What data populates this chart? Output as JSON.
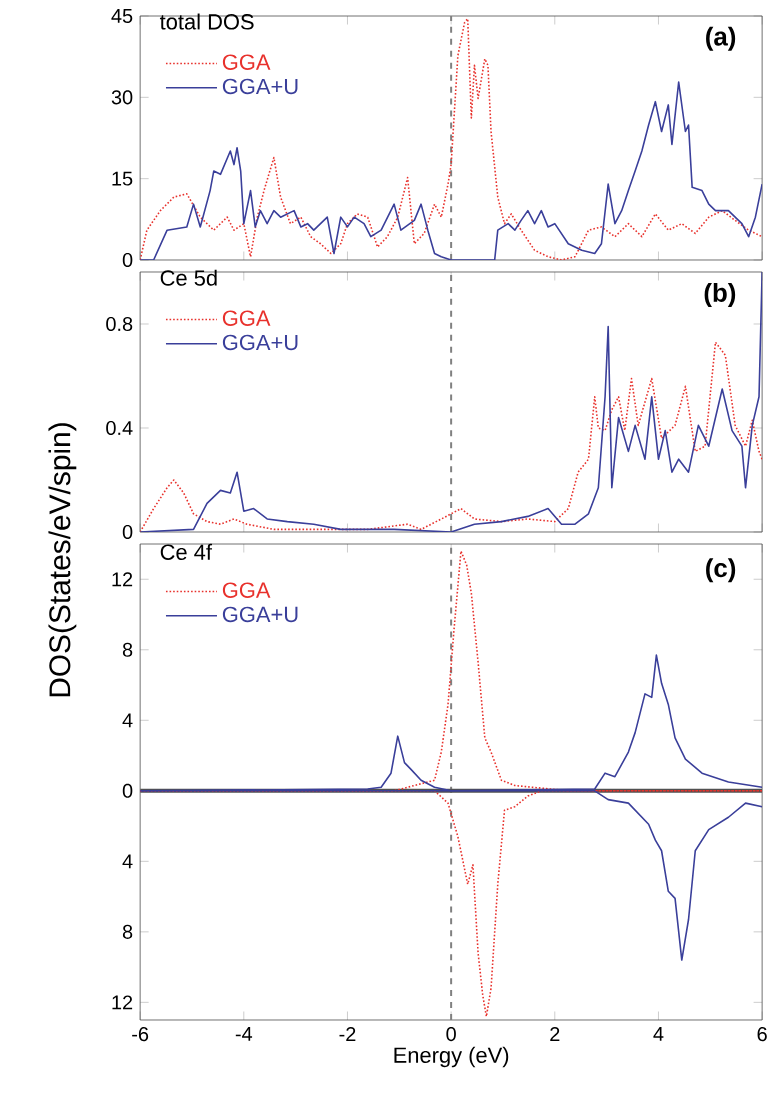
{
  "chart_data": [
    {
      "type": "line",
      "title": "total DOS",
      "annotations": [
        "(a)"
      ],
      "xlim": [
        -6,
        6
      ],
      "xticks": [
        -6,
        -4,
        -2,
        0,
        2,
        4,
        6
      ],
      "ylim": [
        0,
        45
      ],
      "yticks": [
        0,
        15,
        30,
        45
      ],
      "tick_labels": "y",
      "legend": "top left",
      "ref_lines": [
        {
          "axis": "x",
          "value": 0,
          "color": "#808080",
          "line_style": "dashed"
        }
      ],
      "series": [
        {
          "name": "GGA",
          "color": "#e8312c",
          "line_style": "dotted",
          "x": [
            -6,
            -5.87,
            -5.61,
            -5.35,
            -5.1,
            -4.84,
            -4.58,
            -4.32,
            -4.19,
            -4.0,
            -3.87,
            -3.74,
            -3.61,
            -3.42,
            -3.29,
            -3.1,
            -2.9,
            -2.71,
            -2.52,
            -2.32,
            -2.13,
            -2.0,
            -1.81,
            -1.61,
            -1.42,
            -1.23,
            -1.03,
            -0.84,
            -0.71,
            -0.52,
            -0.32,
            -0.19,
            -0.06,
            0.0,
            0.13,
            0.26,
            0.32,
            0.39,
            0.45,
            0.52,
            0.65,
            0.71,
            0.77,
            0.9,
            1.03,
            1.16,
            1.35,
            1.61,
            1.87,
            2.13,
            2.39,
            2.65,
            2.9,
            3.16,
            3.42,
            3.68,
            3.94,
            4.19,
            4.45,
            4.71,
            4.97,
            5.23,
            5.48,
            5.74,
            6.0
          ],
          "values": [
            0,
            5.5,
            9.1,
            11.6,
            12.2,
            7.9,
            5.5,
            7.9,
            5.5,
            6.7,
            0.6,
            7.9,
            12.8,
            18.9,
            11.6,
            6.7,
            7.9,
            4.3,
            3.0,
            1.2,
            3.0,
            6.7,
            8.5,
            7.9,
            2.4,
            4.3,
            7.9,
            15.2,
            3.0,
            4.9,
            10.3,
            7.9,
            14.0,
            17.6,
            37.7,
            43.8,
            44.5,
            26.2,
            35.9,
            29.8,
            37.1,
            35.9,
            23.7,
            11.6,
            6.7,
            8.5,
            5.5,
            1.8,
            0.6,
            0,
            0.6,
            5.5,
            6.1,
            4.3,
            6.7,
            4.3,
            8.5,
            5.5,
            6.7,
            4.9,
            7.9,
            9.1,
            7.3,
            5.5,
            4.3
          ]
        },
        {
          "name": "GGA+U",
          "color": "#3a3f9a",
          "line_style": "solid",
          "x": [
            -6,
            -5.74,
            -5.48,
            -5.1,
            -4.97,
            -4.84,
            -4.65,
            -4.58,
            -4.45,
            -4.26,
            -4.19,
            -4.13,
            -4.06,
            -4.0,
            -3.87,
            -3.78,
            -3.68,
            -3.55,
            -3.42,
            -3.29,
            -3.03,
            -2.9,
            -2.77,
            -2.65,
            -2.39,
            -2.26,
            -2.13,
            -2.0,
            -1.87,
            -1.68,
            -1.55,
            -1.35,
            -1.1,
            -0.97,
            -0.71,
            -0.58,
            -0.45,
            -0.32,
            -0.19,
            0.0,
            0.84,
            0.9,
            1.1,
            1.23,
            1.35,
            1.48,
            1.61,
            1.74,
            1.87,
            2.0,
            2.26,
            2.52,
            2.77,
            2.9,
            3.03,
            3.16,
            3.29,
            3.42,
            3.55,
            3.68,
            3.81,
            3.94,
            4.06,
            4.19,
            4.26,
            4.39,
            4.52,
            4.58,
            4.65,
            4.84,
            4.97,
            5.1,
            5.35,
            5.61,
            5.74,
            5.87,
            6.0
          ],
          "values": [
            0,
            0,
            5.5,
            6.1,
            10.3,
            6.1,
            12.8,
            16.4,
            15.8,
            20.1,
            17.6,
            20.7,
            16.4,
            6.7,
            12.8,
            6.1,
            9.1,
            6.7,
            9.1,
            7.9,
            9.1,
            6.1,
            6.7,
            5.5,
            7.9,
            1.2,
            7.9,
            6.1,
            7.9,
            6.7,
            4.3,
            5.5,
            10.3,
            5.5,
            7.3,
            10.3,
            5.5,
            1.2,
            0.6,
            0,
            0,
            5.5,
            6.7,
            5.5,
            7.3,
            9.1,
            6.7,
            9.1,
            6.1,
            6.7,
            3.0,
            1.8,
            1.2,
            3.0,
            14.0,
            6.7,
            9.1,
            12.8,
            16.4,
            20.1,
            24.9,
            29.2,
            23.7,
            28.6,
            21.3,
            32.8,
            23.7,
            24.9,
            13.4,
            12.8,
            10.3,
            9.1,
            9.1,
            6.7,
            4.3,
            7.9,
            14.0
          ]
        }
      ]
    },
    {
      "type": "line",
      "title": "Ce 5d",
      "ylabel": "DOS(States/eV/spin)",
      "annotations": [
        "(b)"
      ],
      "xlim": [
        -6,
        6
      ],
      "xticks": [
        -6,
        -4,
        -2,
        0,
        2,
        4,
        6
      ],
      "ylim": [
        0,
        1
      ],
      "yticks": [
        0,
        0.4,
        0.8
      ],
      "tick_labels": "y",
      "legend": "top left",
      "ref_lines": [
        {
          "axis": "x",
          "value": 0,
          "color": "#808080",
          "line_style": "dashed"
        }
      ],
      "series": [
        {
          "name": "GGA",
          "color": "#e8312c",
          "line_style": "dotted",
          "x": [
            -6,
            -5.74,
            -5.48,
            -5.35,
            -5.16,
            -4.97,
            -4.71,
            -4.45,
            -4.19,
            -3.94,
            -3.42,
            -2.52,
            -1.61,
            -0.84,
            -0.58,
            -0.19,
            0.19,
            0.45,
            0.97,
            1.48,
            2.0,
            2.26,
            2.45,
            2.65,
            2.77,
            2.84,
            2.97,
            3.1,
            3.23,
            3.35,
            3.48,
            3.61,
            3.87,
            4.06,
            4.32,
            4.52,
            4.71,
            4.9,
            5.1,
            5.29,
            5.48,
            5.68,
            5.81,
            5.94,
            6.0
          ],
          "values": [
            0,
            0.09,
            0.17,
            0.2,
            0.15,
            0.07,
            0.04,
            0.03,
            0.05,
            0.03,
            0.01,
            0.01,
            0.01,
            0.03,
            0.01,
            0.05,
            0.09,
            0.05,
            0.04,
            0.05,
            0.04,
            0.09,
            0.23,
            0.28,
            0.52,
            0.4,
            0.39,
            0.47,
            0.52,
            0.39,
            0.59,
            0.41,
            0.59,
            0.36,
            0.41,
            0.56,
            0.31,
            0.33,
            0.73,
            0.68,
            0.41,
            0.33,
            0.43,
            0.31,
            0.28
          ]
        },
        {
          "name": "GGA+U",
          "color": "#3a3f9a",
          "line_style": "solid",
          "x": [
            -6,
            -4.97,
            -4.71,
            -4.45,
            -4.26,
            -4.13,
            -4.0,
            -3.81,
            -3.55,
            -3.16,
            -2.65,
            -2.13,
            -1.1,
            0.0,
            0.45,
            0.97,
            1.48,
            1.87,
            2.13,
            2.39,
            2.65,
            2.84,
            2.97,
            3.03,
            3.1,
            3.23,
            3.42,
            3.55,
            3.74,
            3.87,
            4.0,
            4.13,
            4.26,
            4.39,
            4.58,
            4.77,
            4.97,
            5.23,
            5.42,
            5.61,
            5.68,
            5.81,
            5.94,
            6.0
          ],
          "values": [
            0,
            0.01,
            0.11,
            0.16,
            0.15,
            0.23,
            0.08,
            0.09,
            0.05,
            0.04,
            0.03,
            0.01,
            0.01,
            0,
            0.03,
            0.04,
            0.06,
            0.09,
            0.03,
            0.03,
            0.07,
            0.17,
            0.52,
            0.79,
            0.17,
            0.44,
            0.31,
            0.41,
            0.28,
            0.52,
            0.28,
            0.39,
            0.23,
            0.28,
            0.23,
            0.41,
            0.33,
            0.55,
            0.39,
            0.33,
            0.17,
            0.41,
            0.52,
            1.0
          ]
        }
      ]
    },
    {
      "type": "line",
      "title": "Ce 4f",
      "xlabel": "Energy (eV)",
      "annotations": [
        "(c)"
      ],
      "xlim": [
        -6,
        6
      ],
      "xticks": [
        -6,
        -4,
        -2,
        0,
        2,
        4,
        6
      ],
      "ylim": [
        -13,
        14
      ],
      "yticks": [
        {
          "value": -12,
          "label": "12"
        },
        {
          "value": -8,
          "label": "8"
        },
        {
          "value": -4,
          "label": "4"
        },
        0,
        4,
        8,
        12
      ],
      "legend": "top left",
      "ref_lines": [
        {
          "axis": "x",
          "value": 0,
          "color": "#808080",
          "line_style": "dashed"
        },
        {
          "axis": "y",
          "value": 0,
          "color": "#505050",
          "line_style": "solid"
        }
      ],
      "series": [
        {
          "name": "GGA",
          "color": "#e8312c",
          "line_style": "dotted",
          "x": [
            -6,
            -1.1,
            -0.71,
            -0.32,
            -0.19,
            -0.06,
            0.06,
            0.19,
            0.3,
            0.39,
            0.52,
            0.65,
            0.77,
            0.97,
            1.23,
            2.26,
            6
          ],
          "values": [
            0,
            0,
            0.3,
            0.6,
            2.2,
            4.9,
            9.3,
            13.6,
            12.8,
            11.2,
            7.3,
            3.0,
            2.2,
            0.6,
            0.3,
            0,
            0
          ]
        },
        {
          "name": "GGA+U",
          "color": "#3a3f9a",
          "line_style": "solid",
          "x": [
            -6,
            -1.61,
            -1.35,
            -1.16,
            -1.03,
            -0.9,
            -0.77,
            -0.58,
            -0.32,
            0,
            2.77,
            2.97,
            3.16,
            3.42,
            3.55,
            3.74,
            3.87,
            3.96,
            4.06,
            4.19,
            4.32,
            4.52,
            4.84,
            5.35,
            6.0
          ],
          "values": [
            0,
            0.1,
            0.2,
            1.0,
            3.1,
            1.6,
            1.2,
            0.6,
            0.2,
            0,
            0.1,
            1.0,
            0.8,
            2.2,
            3.3,
            5.5,
            5.3,
            7.7,
            6.1,
            4.9,
            3.0,
            1.8,
            1.0,
            0.5,
            0.2
          ]
        },
        {
          "color": "#e8312c",
          "line_style": "dotted",
          "x": [
            -6,
            -0.32,
            -0.06,
            0.13,
            0.32,
            0.42,
            0.52,
            0.61,
            0.68,
            0.77,
            0.9,
            1.03,
            1.23,
            1.48,
            1.74,
            6
          ],
          "values": [
            0,
            0,
            -0.7,
            -2.6,
            -5.3,
            -4.2,
            -9.2,
            -11.6,
            -12.8,
            -11.2,
            -5.3,
            -1.1,
            -0.9,
            -0.3,
            0,
            0
          ]
        },
        {
          "color": "#3a3f9a",
          "line_style": "solid",
          "x": [
            -6,
            2.77,
            3.03,
            3.42,
            3.81,
            3.94,
            4.06,
            4.19,
            4.32,
            4.45,
            4.58,
            4.71,
            4.97,
            5.35,
            5.68,
            6.0
          ],
          "values": [
            0,
            0,
            -0.5,
            -0.7,
            -1.9,
            -2.8,
            -3.4,
            -5.7,
            -6.1,
            -9.6,
            -7.3,
            -3.4,
            -2.2,
            -1.5,
            -0.7,
            -0.9
          ]
        }
      ]
    }
  ]
}
